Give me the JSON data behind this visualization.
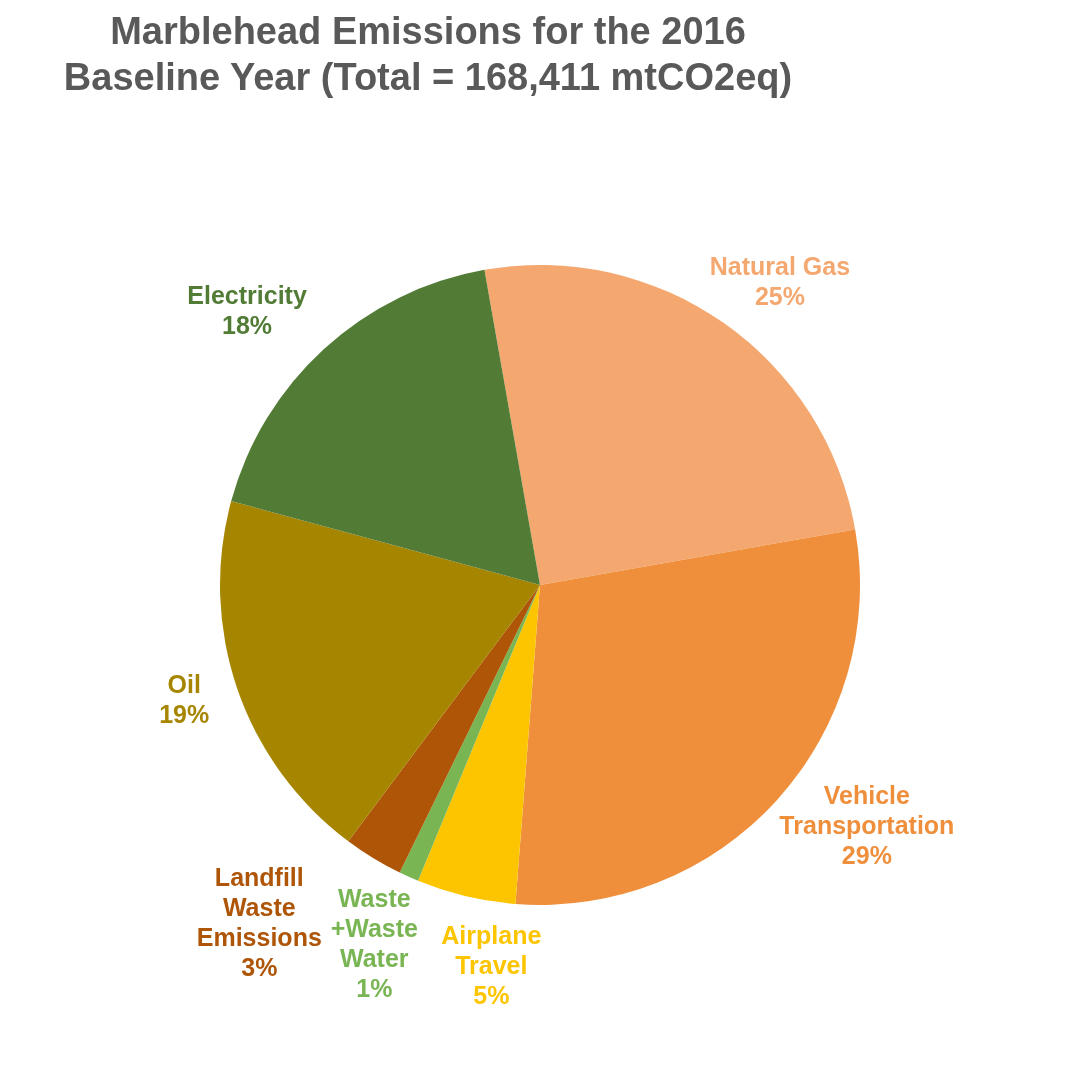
{
  "chart_data": {
    "type": "pie",
    "title": "Marblehead Emissions for the 2016 Baseline Year (Total = 168,411 mtCO2eq)",
    "categories": [
      "Natural Gas",
      "Vehicle Transportation",
      "Airplane Travel",
      "Waste +Waste Water",
      "Landfill Waste Emissions",
      "Oil",
      "Electricity"
    ],
    "values": [
      25,
      29,
      5,
      1,
      3,
      19,
      18
    ],
    "value_labels": [
      "25%",
      "29%",
      "5%",
      "1%",
      "3%",
      "19%",
      "18%"
    ],
    "colors": [
      "#f4a870",
      "#ef8f3c",
      "#fdc500",
      "#7ab554",
      "#ae5508",
      "#a68600",
      "#527c36"
    ],
    "legend": false
  }
}
